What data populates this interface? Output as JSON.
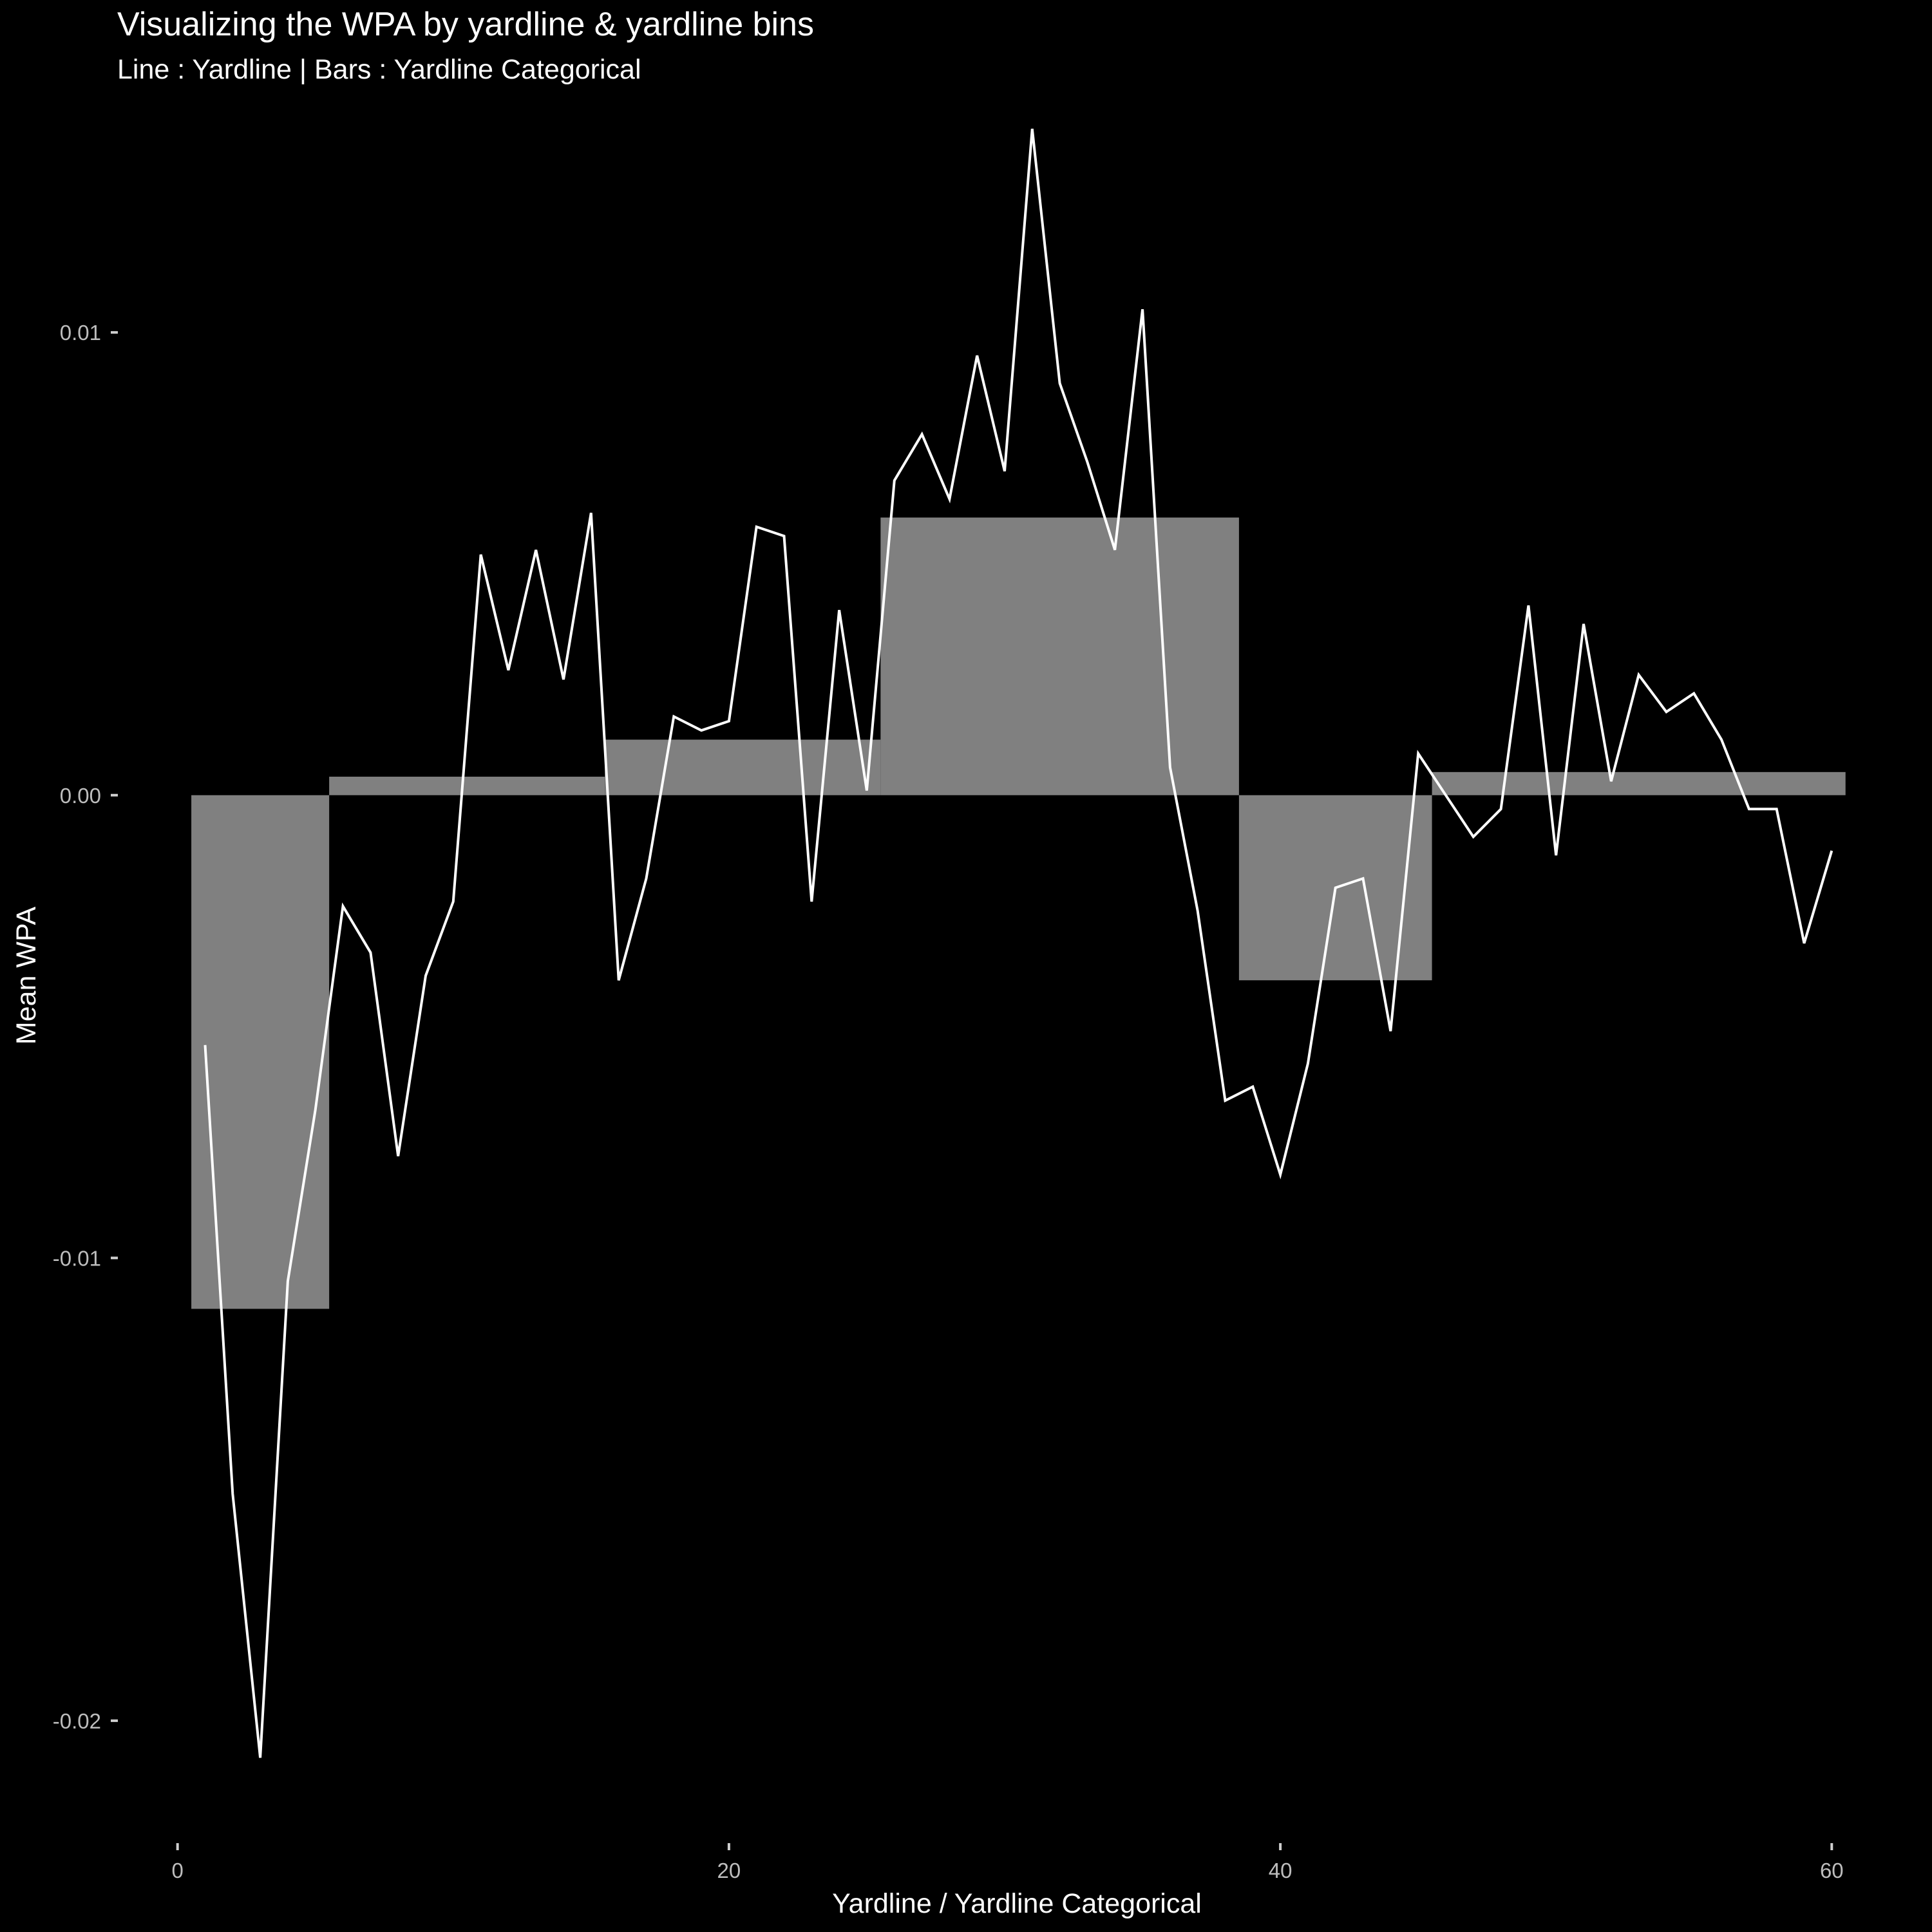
{
  "chart_data": {
    "type": "bar",
    "title": "Visualizing the WPA by yardline & yardline bins",
    "subtitle": "Line : Yardline | Bars : Yardline Categorical",
    "xlabel": "Yardline / Yardline Categorical",
    "ylabel": "Mean WPA",
    "xlim": [
      -0.6,
      60.6
    ],
    "ylim": [
      -0.0222,
      0.0144
    ],
    "x_ticks": [
      0,
      20,
      40,
      60
    ],
    "x_tick_labels": [
      "0",
      "20",
      "40",
      "60"
    ],
    "y_ticks": [
      -0.02,
      -0.01,
      0.0,
      0.01
    ],
    "y_tick_labels": [
      "-0.02",
      "-0.01",
      "0.00",
      "0.01"
    ],
    "grid": false,
    "bars": {
      "name": "Yardline Categorical",
      "color": "#808080",
      "bins": [
        {
          "x_start": 0.5,
          "x_end": 5.5,
          "value": -0.0111
        },
        {
          "x_start": 5.5,
          "x_end": 15.5,
          "value": 0.0004
        },
        {
          "x_start": 15.5,
          "x_end": 25.5,
          "value": 0.0012
        },
        {
          "x_start": 25.5,
          "x_end": 38.5,
          "value": 0.006
        },
        {
          "x_start": 38.5,
          "x_end": 45.5,
          "value": -0.004
        },
        {
          "x_start": 45.5,
          "x_end": 60.5,
          "value": 0.0005
        }
      ]
    },
    "line": {
      "name": "Yardline",
      "color": "#ffffff",
      "x": [
        1,
        2,
        3,
        4,
        5,
        6,
        7,
        8,
        9,
        10,
        11,
        12,
        13,
        14,
        15,
        16,
        17,
        18,
        19,
        20,
        21,
        22,
        23,
        24,
        25,
        26,
        27,
        28,
        29,
        30,
        31,
        32,
        33,
        34,
        35,
        36,
        37,
        38,
        39,
        40,
        41,
        42,
        43,
        44,
        45,
        46,
        47,
        48,
        49,
        50,
        51,
        52,
        53,
        54,
        55,
        56,
        57,
        58,
        59,
        60
      ],
      "y": [
        -0.0054,
        -0.0151,
        -0.0208,
        -0.0105,
        -0.0068,
        -0.0024,
        -0.0034,
        -0.0078,
        -0.0039,
        -0.0023,
        0.0052,
        0.0027,
        0.0053,
        0.0025,
        0.0061,
        -0.004,
        -0.0018,
        0.0017,
        0.0014,
        0.0016,
        0.0058,
        0.0056,
        -0.0023,
        0.004,
        0.0001,
        0.0068,
        0.0078,
        0.0064,
        0.0095,
        0.007,
        0.0144,
        0.0089,
        0.0072,
        0.0053,
        0.0105,
        0.0006,
        -0.0025,
        -0.0066,
        -0.0063,
        -0.0082,
        -0.0058,
        -0.002,
        -0.0018,
        -0.0051,
        0.0009,
        0.0,
        -0.0009,
        -0.0003,
        0.0041,
        -0.0013,
        0.0037,
        0.0003,
        0.0026,
        0.0018,
        0.0022,
        0.0012,
        -0.0003,
        -0.0003,
        -0.0032,
        -0.0012
      ]
    }
  }
}
